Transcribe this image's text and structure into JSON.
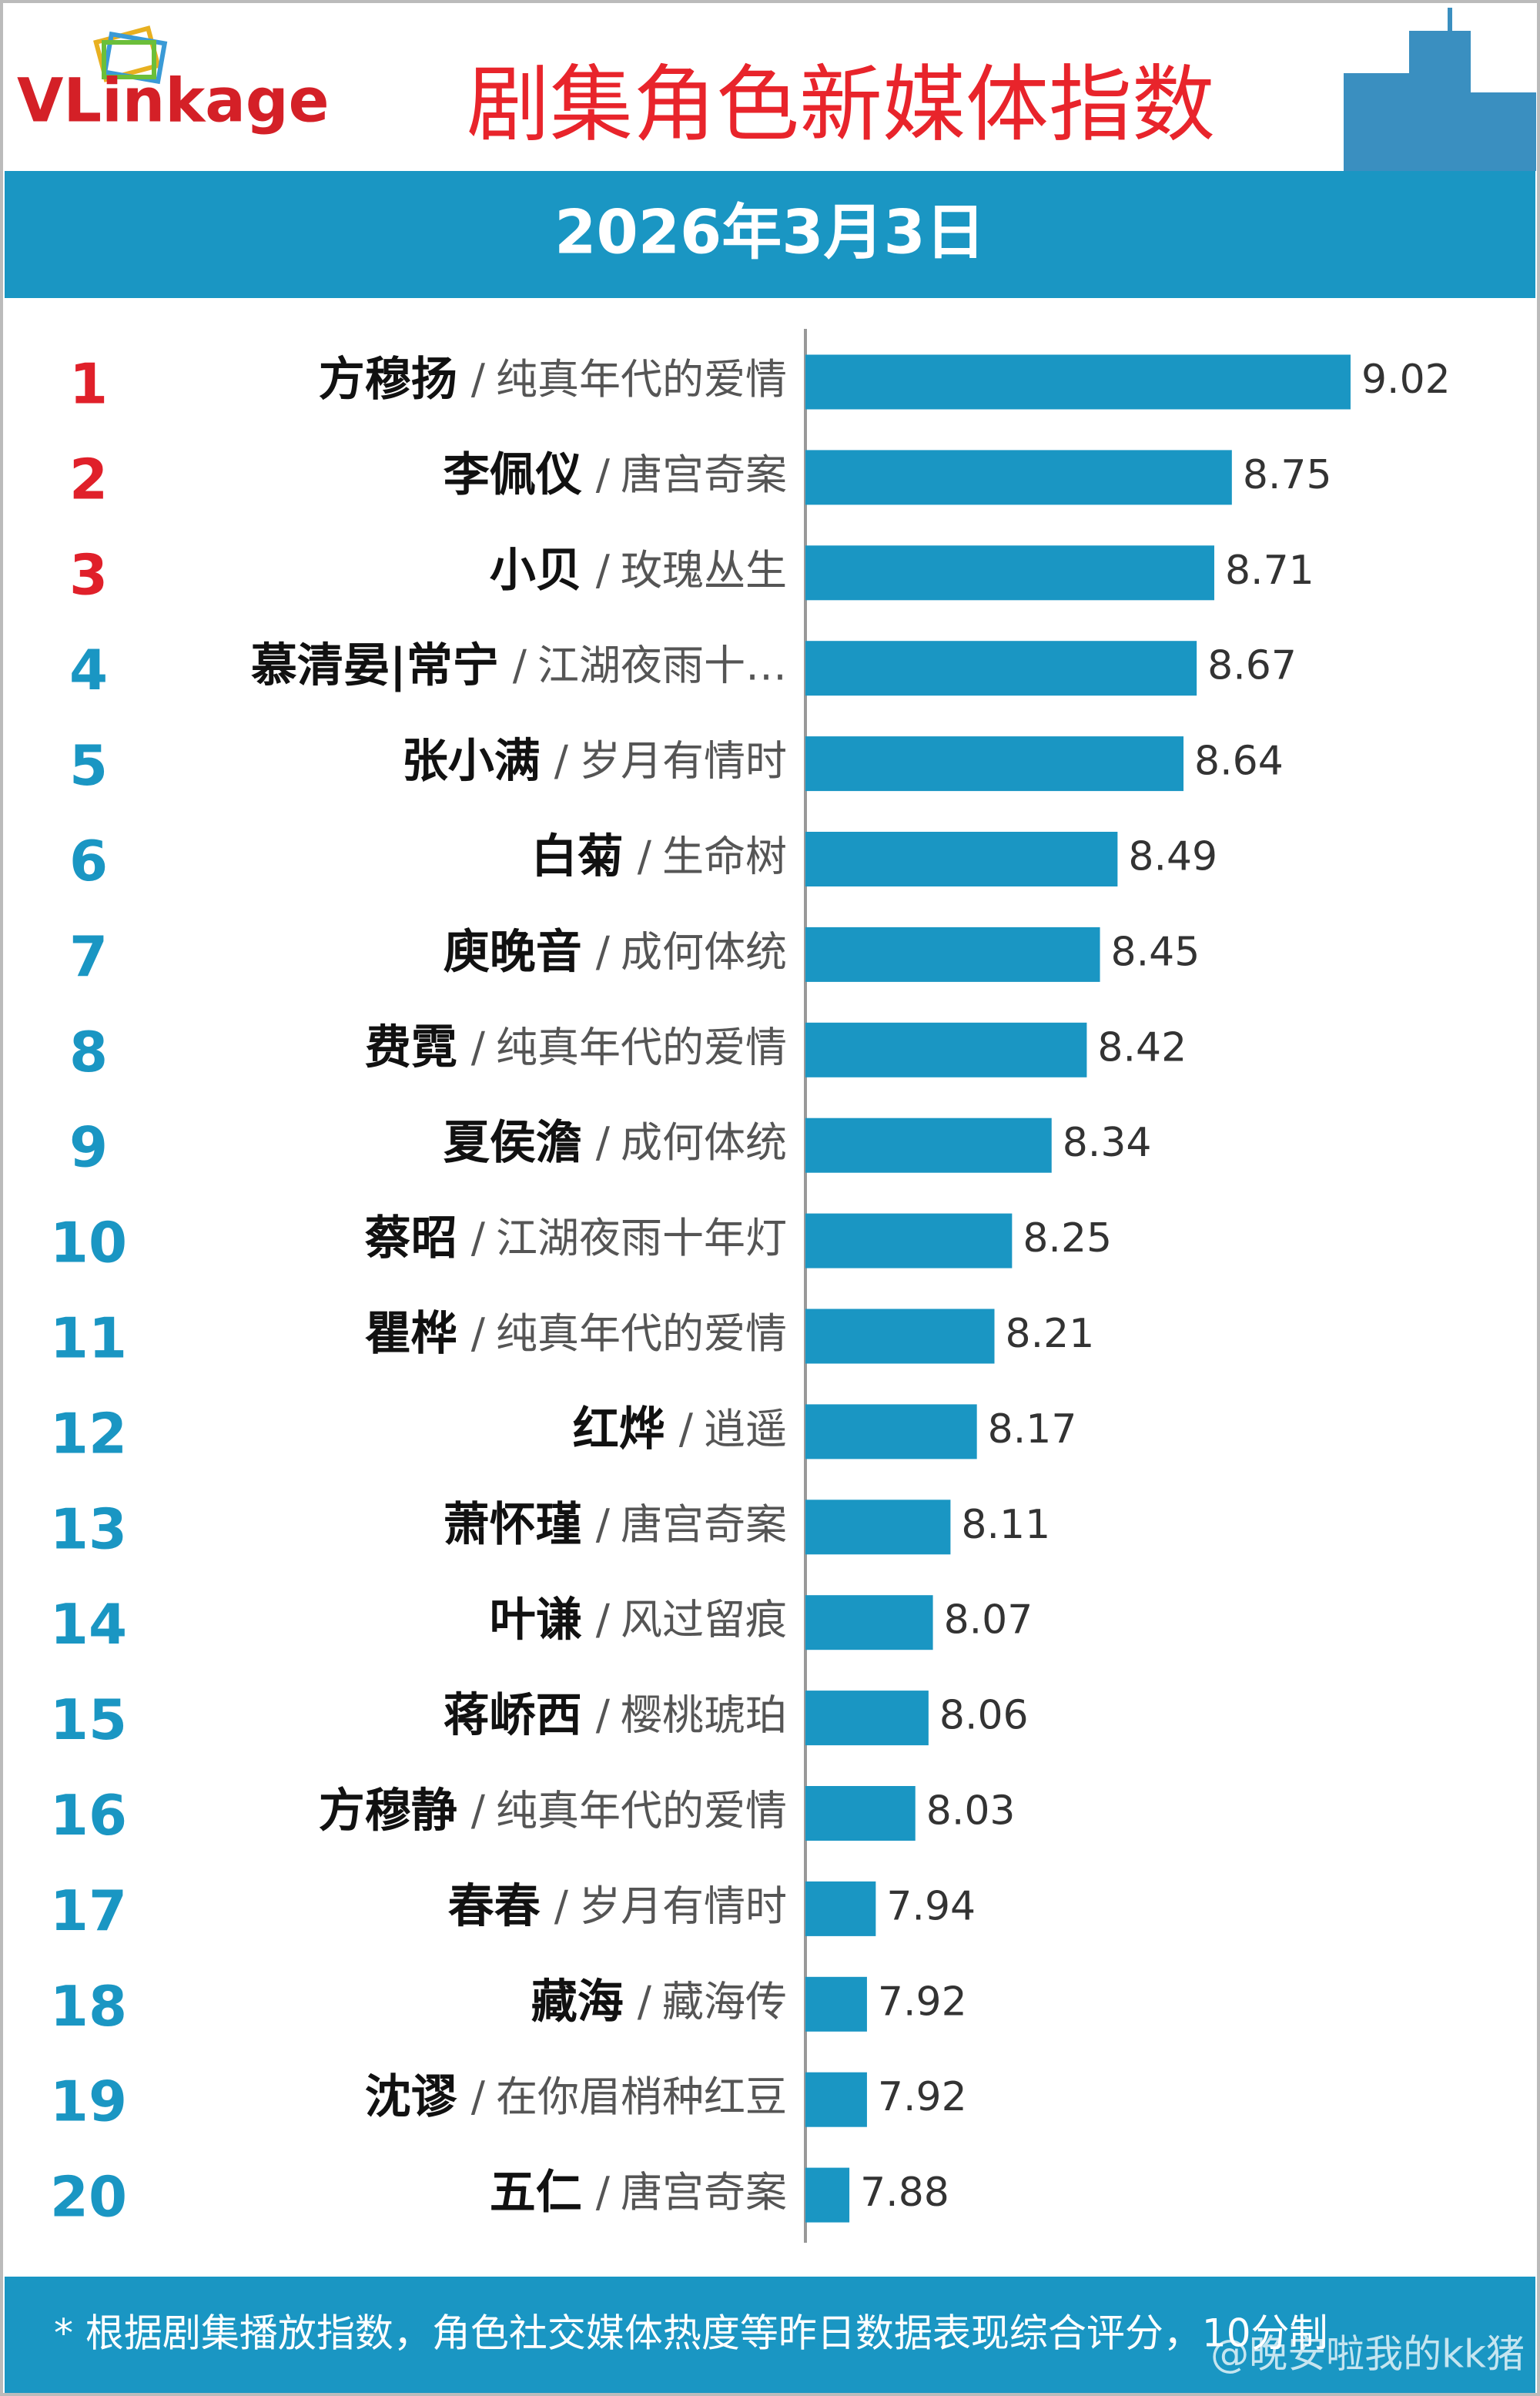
{
  "chart_data": {
    "type": "bar",
    "orientation": "horizontal",
    "brand": "VLinkage",
    "title": "剧集角色新媒体指数",
    "subtitle": "2026年3月3日",
    "ranks": [
      1,
      2,
      3,
      4,
      5,
      6,
      7,
      8,
      9,
      10,
      11,
      12,
      13,
      14,
      15,
      16,
      17,
      18,
      19,
      20
    ],
    "categories": [
      "方穆扬",
      "李佩仪",
      "小贝",
      "慕清晏|常宁",
      "张小满",
      "白菊",
      "庾晚音",
      "费霓",
      "夏侯澹",
      "蔡昭",
      "瞿桦",
      "红烨",
      "萧怀瑾",
      "叶谦",
      "蒋峤西",
      "方穆静",
      "春春",
      "藏海",
      "沈谬",
      "五仁"
    ],
    "separator": "/",
    "dramas": [
      "纯真年代的爱情",
      "唐宫奇案",
      "玫瑰丛生",
      "江湖夜雨十…",
      "岁月有情时",
      "生命树",
      "成何体统",
      "纯真年代的爱情",
      "成何体统",
      "江湖夜雨十年灯",
      "纯真年代的爱情",
      "逍遥",
      "唐宫奇案",
      "风过留痕",
      "樱桃琥珀",
      "纯真年代的爱情",
      "岁月有情时",
      "藏海传",
      "在你眉梢种红豆",
      "唐宫奇案"
    ],
    "values": [
      9.02,
      8.75,
      8.71,
      8.67,
      8.64,
      8.49,
      8.45,
      8.42,
      8.34,
      8.25,
      8.21,
      8.17,
      8.11,
      8.07,
      8.06,
      8.03,
      7.94,
      7.92,
      7.92,
      7.88
    ],
    "color": "#1a96c3",
    "top_rank_color": "#e0202a",
    "rank_color": "#1a96c3",
    "xlim": [
      7.78,
      9.26
    ],
    "footnote": "* 根据剧集播放指数，角色社交媒体热度等昨日数据表现综合评分，10分制",
    "watermark": "@晚安啦我的kk猪"
  }
}
